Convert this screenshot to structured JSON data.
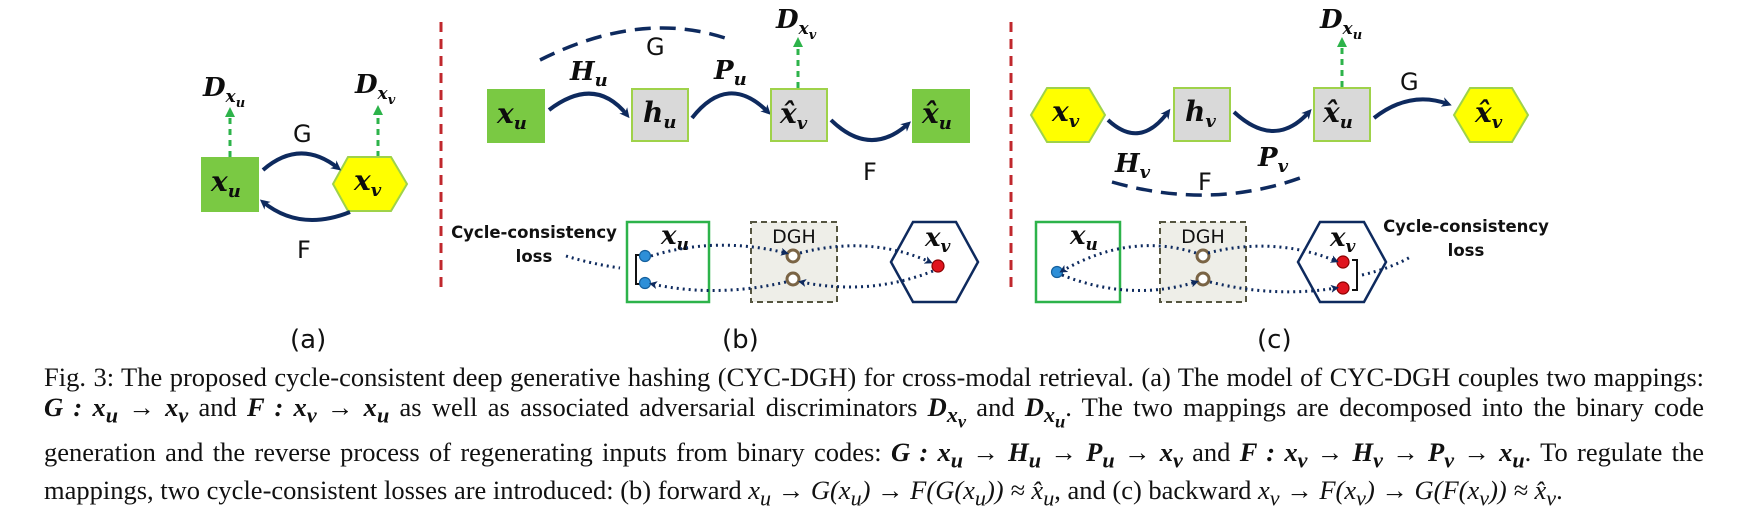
{
  "figure": {
    "panel_a": {
      "g_label": "G",
      "f_label": "F",
      "node_u": "x",
      "node_u_sub": "u",
      "node_v": "x",
      "node_v_sub": "v",
      "disc_u": "D",
      "disc_u_sub": "x",
      "disc_u_subsub": "u",
      "disc_v": "D",
      "disc_v_sub": "x",
      "disc_v_subsub": "v",
      "label": "(a)"
    },
    "panel_b": {
      "g_label": "G",
      "f_label": "F",
      "hu_label": "H",
      "hu_sub": "u",
      "pu_label": "P",
      "pu_sub": "u",
      "node_xu": "x",
      "node_xu_sub": "u",
      "node_hu": "h",
      "node_hu_sub": "u",
      "node_xv_hat": "x̂",
      "node_xv_hat_sub": "v",
      "node_xu_hat": "x̂",
      "node_xu_hat_sub": "u",
      "disc": "D",
      "disc_sub": "x",
      "disc_subsub": "v",
      "cycle_line1": "Cycle-consistency",
      "cycle_line2": "loss",
      "box_xu": "x",
      "box_xu_sub": "u",
      "dgh": "DGH",
      "box_xv": "x",
      "box_xv_sub": "v",
      "label": "(b)"
    },
    "panel_c": {
      "g_label": "G",
      "f_label": "F",
      "hv_label": "H",
      "hv_sub": "v",
      "pv_label": "P",
      "pv_sub": "v",
      "node_xv": "x",
      "node_xv_sub": "v",
      "node_hv": "h",
      "node_hv_sub": "v",
      "node_xu_hat": "x̂",
      "node_xu_hat_sub": "u",
      "node_xv_hat": "x̂",
      "node_xv_hat_sub": "v",
      "disc": "D",
      "disc_sub": "x",
      "disc_subsub": "u",
      "cycle_line1": "Cycle-consistency",
      "cycle_line2": "loss",
      "box_xu": "x",
      "box_xu_sub": "u",
      "dgh": "DGH",
      "box_xv": "x",
      "box_xv_sub": "v",
      "label": "(c)"
    },
    "colors": {
      "green": "#7ac943",
      "yellow": "#ffff00",
      "gray_node": "#d9d9d9",
      "navy": "#0e2a5e",
      "dash_green": "#2db34a",
      "separator": "#c0282d",
      "dot_blue": "#2d8fd8",
      "dot_red": "#e0141e",
      "ring": "#7a6445"
    }
  },
  "caption": {
    "p1": "Fig. 3: The proposed cycle-consistent deep generative hashing (CYC-DGH) for cross-modal retrieval. (a) The model of CYC-DGH couples two mappings: ",
    "m1": "G : x",
    "m1s": "u",
    "m1b": " → x",
    "m1bs": "v",
    "p2": " and ",
    "m2": "F : x",
    "m2s": "v",
    "m2b": " → x",
    "m2bs": "u",
    "p3": " as well as associated adversarial discriminators ",
    "m3": "D",
    "m3s": "x",
    "m3ss": "v",
    "p4": " and ",
    "m4": "D",
    "m4s": "x",
    "m4ss": "u",
    "p5": ". The two mappings are decomposed into the binary code generation and the reverse process of regenerating inputs from binary codes: ",
    "m5": "G : x",
    "m5s": "u",
    "m5b": " → H",
    "m5bs": "u",
    "m5c": " → P",
    "m5cs": "u",
    "m5d": " → x",
    "m5ds": "v",
    "p6": " and ",
    "m6": "F : x",
    "m6s": "v",
    "m6b": " → H",
    "m6bs": "v",
    "m6c": " → P",
    "m6cs": "v",
    "m6d": " → x",
    "m6ds": "u",
    "p7": ". To regulate the mappings, two cycle-consistent losses are introduced: (b) forward ",
    "m7": "x",
    "m7s": "u",
    "m7b": " → G(x",
    "m7bs": "u",
    "m7c": ") → F(G(x",
    "m7cs": "u",
    "m7d": ")) ≈ x̂",
    "m7ds": "u",
    "p8": ", and (c) backward ",
    "m8": "x",
    "m8s": "v",
    "m8b": " → F(x",
    "m8bs": "v",
    "m8c": ") → G(F(x",
    "m8cs": "v",
    "m8d": ")) ≈ x̂",
    "m8ds": "v",
    "p9": "."
  }
}
